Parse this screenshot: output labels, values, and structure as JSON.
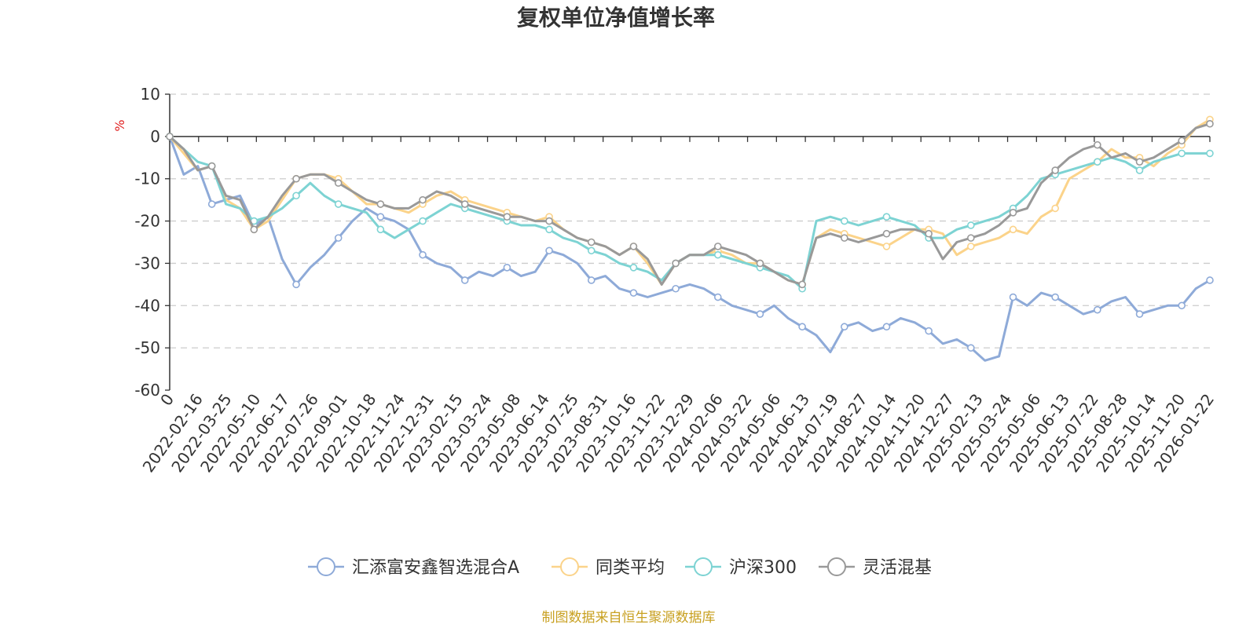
{
  "chart_data": {
    "type": "line",
    "title": "复权单位净值增长率",
    "ylabel": "%",
    "ylim": [
      -60,
      10
    ],
    "yticks": [
      10,
      0,
      -10,
      -20,
      -30,
      -40,
      -50,
      -60
    ],
    "grid": true,
    "legend_position": "bottom",
    "x_tick_labels": [
      "0",
      "2022-02-16",
      "2022-03-25",
      "2022-05-10",
      "2022-06-17",
      "2022-07-26",
      "2022-09-01",
      "2022-10-18",
      "2022-11-24",
      "2022-12-31",
      "2023-02-15",
      "2023-03-24",
      "2023-05-08",
      "2023-06-14",
      "2023-07-25",
      "2023-08-31",
      "2023-10-16",
      "2023-11-22",
      "2023-12-29",
      "2024-02-06",
      "2024-03-22",
      "2024-05-06",
      "2024-06-13",
      "2024-07-19",
      "2024-08-27",
      "2024-10-14",
      "2024-11-20",
      "2024-12-27",
      "2025-02-13",
      "2025-03-24",
      "2025-05-06",
      "2025-06-13",
      "2025-07-22",
      "2025-08-28",
      "2025-10-14",
      "2025-11-20",
      "2026-01-22"
    ],
    "x_index": [
      0,
      1,
      2,
      3,
      4,
      5,
      6,
      7,
      8,
      9,
      10,
      11,
      12,
      13,
      14,
      15,
      16,
      17,
      18,
      19,
      20,
      21,
      22,
      23,
      24,
      25,
      26,
      27,
      28,
      29,
      30,
      31,
      32,
      33,
      34,
      35,
      36,
      37,
      38,
      39,
      40,
      41,
      42,
      43,
      44,
      45,
      46,
      47,
      48,
      49,
      50,
      51,
      52,
      53,
      54,
      55,
      56,
      57,
      58,
      59,
      60,
      61,
      62,
      63,
      64,
      65,
      66,
      67,
      68,
      69,
      70,
      71,
      72,
      73,
      74
    ],
    "series": [
      {
        "name": "汇添富安鑫智选混合A",
        "color": "#8eaad8",
        "values": [
          0,
          -9,
          -7,
          -16,
          -15,
          -14,
          -21,
          -19,
          -29,
          -35,
          -31,
          -28,
          -24,
          -20,
          -17,
          -19,
          -20,
          -22,
          -28,
          -30,
          -31,
          -34,
          -32,
          -33,
          -31,
          -33,
          -32,
          -27,
          -28,
          -30,
          -34,
          -33,
          -36,
          -37,
          -38,
          -37,
          -36,
          -35,
          -36,
          -38,
          -40,
          -41,
          -42,
          -40,
          -43,
          -45,
          -47,
          -51,
          -45,
          -44,
          -46,
          -45,
          -43,
          -44,
          -46,
          -49,
          -48,
          -50,
          -53,
          -52,
          -38,
          -40,
          -37,
          -38,
          -40,
          -42,
          -41,
          -39,
          -38,
          -42,
          -41,
          -40,
          -40,
          -36,
          -34
        ]
      },
      {
        "name": "同类平均",
        "color": "#fbd38a",
        "values": [
          0,
          -4,
          -8,
          -7,
          -15,
          -17,
          -22,
          -20,
          -15,
          -10,
          -9,
          -9,
          -10,
          -13,
          -16,
          -16,
          -17,
          -18,
          -16,
          -14,
          -13,
          -15,
          -16,
          -17,
          -18,
          -19,
          -20,
          -19,
          -22,
          -24,
          -25,
          -26,
          -28,
          -26,
          -30,
          -35,
          -30,
          -28,
          -28,
          -27,
          -28,
          -30,
          -30,
          -32,
          -34,
          -35,
          -24,
          -22,
          -23,
          -24,
          -25,
          -26,
          -24,
          -22,
          -22,
          -23,
          -28,
          -26,
          -25,
          -24,
          -22,
          -23,
          -19,
          -17,
          -10,
          -8,
          -6,
          -3,
          -5,
          -5,
          -7,
          -4,
          -2,
          2,
          4
        ]
      },
      {
        "name": "沪深300",
        "color": "#7dd3d3",
        "values": [
          0,
          -3,
          -6,
          -7,
          -16,
          -17,
          -20,
          -19,
          -17,
          -14,
          -11,
          -14,
          -16,
          -17,
          -18,
          -22,
          -24,
          -22,
          -20,
          -18,
          -16,
          -17,
          -18,
          -19,
          -20,
          -21,
          -21,
          -22,
          -24,
          -25,
          -27,
          -28,
          -30,
          -31,
          -32,
          -34,
          -30,
          -28,
          -28,
          -28,
          -29,
          -30,
          -31,
          -32,
          -33,
          -36,
          -20,
          -19,
          -20,
          -21,
          -20,
          -19,
          -20,
          -21,
          -24,
          -24,
          -22,
          -21,
          -20,
          -19,
          -17,
          -14,
          -10,
          -9,
          -8,
          -7,
          -6,
          -5,
          -6,
          -8,
          -6,
          -5,
          -4,
          -4,
          -4
        ]
      },
      {
        "name": "灵活混基",
        "color": "#999999",
        "values": [
          0,
          -3,
          -8,
          -7,
          -14,
          -15,
          -22,
          -19,
          -14,
          -10,
          -9,
          -9,
          -11,
          -13,
          -15,
          -16,
          -17,
          -17,
          -15,
          -13,
          -14,
          -16,
          -17,
          -18,
          -19,
          -19,
          -20,
          -20,
          -22,
          -24,
          -25,
          -26,
          -28,
          -26,
          -29,
          -35,
          -30,
          -28,
          -28,
          -26,
          -27,
          -28,
          -30,
          -32,
          -34,
          -35,
          -24,
          -23,
          -24,
          -25,
          -24,
          -23,
          -22,
          -22,
          -23,
          -29,
          -25,
          -24,
          -23,
          -21,
          -18,
          -17,
          -11,
          -8,
          -5,
          -3,
          -2,
          -5,
          -4,
          -6,
          -5,
          -3,
          -1,
          2,
          3
        ]
      }
    ]
  },
  "footer": "制图数据来自恒生聚源数据库"
}
